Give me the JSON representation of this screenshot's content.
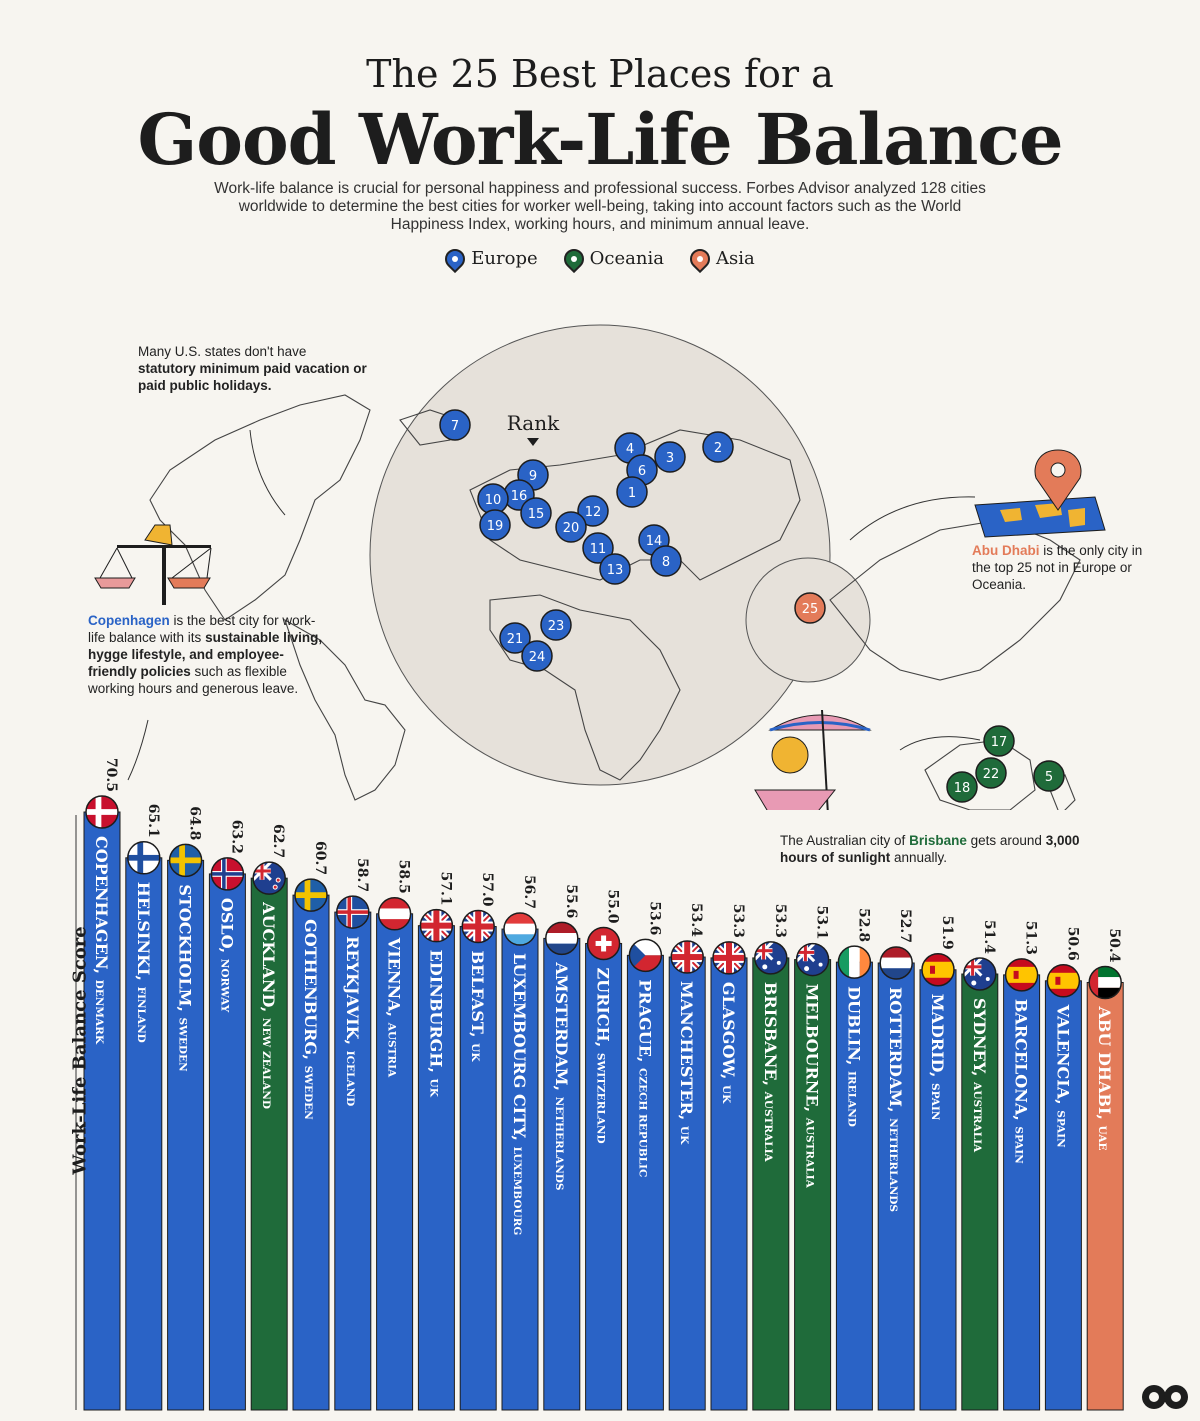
{
  "title_line1": "The 25 Best Places for a",
  "title_line2": "Good Work-Life Balance",
  "subtitle": "Work-life balance is crucial for personal happiness and professional success. Forbes Advisor analyzed 128 cities worldwide to determine the best cities for worker well-being, taking into account factors such as the World Happiness Index, working hours, and minimum annual leave.",
  "legend": [
    {
      "label": "Europe",
      "color": "#2a63c6"
    },
    {
      "label": "Oceania",
      "color": "#1f6b3a"
    },
    {
      "label": "Asia",
      "color": "#e37b59"
    }
  ],
  "notes": {
    "us": {
      "plain": "Many U.S. states don't have",
      "bold": "statutory minimum paid vacation or paid public holidays."
    },
    "copenhagen": {
      "city": "Copenhagen",
      "t1": "is the best city for work-life balance with its",
      "bold": "sustainable living, hygge lifestyle, and employee-friendly policies",
      "t2": "such as flexible working hours and generous leave."
    },
    "abudhabi": {
      "city": "Abu Dhabi",
      "text": "is the only city in the top 25 not in Europe or Oceania."
    },
    "brisbane": {
      "t1": "The Australian city of",
      "city": "Brisbane",
      "t2": "gets around",
      "bold": "3,000 hours of sunlight",
      "t3": "annually."
    }
  },
  "map": {
    "rank_label": "Rank",
    "markers": [
      {
        "rank": "7",
        "region": "Europe"
      },
      {
        "rank": "4",
        "region": "Europe"
      },
      {
        "rank": "3",
        "region": "Europe"
      },
      {
        "rank": "2",
        "region": "Europe"
      },
      {
        "rank": "6",
        "region": "Europe"
      },
      {
        "rank": "1",
        "region": "Europe"
      },
      {
        "rank": "9",
        "region": "Europe"
      },
      {
        "rank": "16",
        "region": "Europe"
      },
      {
        "rank": "10",
        "region": "Europe"
      },
      {
        "rank": "19",
        "region": "Europe"
      },
      {
        "rank": "15",
        "region": "Europe"
      },
      {
        "rank": "12",
        "region": "Europe"
      },
      {
        "rank": "20",
        "region": "Europe"
      },
      {
        "rank": "11",
        "region": "Europe"
      },
      {
        "rank": "14",
        "region": "Europe"
      },
      {
        "rank": "13",
        "region": "Europe"
      },
      {
        "rank": "8",
        "region": "Europe"
      },
      {
        "rank": "23",
        "region": "Europe"
      },
      {
        "rank": "21",
        "region": "Europe"
      },
      {
        "rank": "24",
        "region": "Europe"
      },
      {
        "rank": "25",
        "region": "Asia"
      },
      {
        "rank": "17",
        "region": "Oceania"
      },
      {
        "rank": "22",
        "region": "Oceania"
      },
      {
        "rank": "18",
        "region": "Oceania"
      },
      {
        "rank": "5",
        "region": "Oceania"
      }
    ]
  },
  "chart_data": {
    "type": "bar",
    "ylabel": "Work-Life Balance Score",
    "colors": {
      "Europe": "#2a63c6",
      "Oceania": "#1f6b3a",
      "Asia": "#e37b59"
    },
    "bars": [
      {
        "city": "COPENHAGEN,",
        "country": "DENMARK",
        "value": 70.5,
        "region": "Europe",
        "flag": "DK"
      },
      {
        "city": "HELSINKI,",
        "country": "FINLAND",
        "value": 65.1,
        "region": "Europe",
        "flag": "FI"
      },
      {
        "city": "STOCKHOLM,",
        "country": "SWEDEN",
        "value": 64.8,
        "region": "Europe",
        "flag": "SE"
      },
      {
        "city": "OSLO,",
        "country": "NORWAY",
        "value": 63.2,
        "region": "Europe",
        "flag": "NO"
      },
      {
        "city": "AUCKLAND,",
        "country": "NEW ZEALAND",
        "value": 62.7,
        "region": "Oceania",
        "flag": "NZ"
      },
      {
        "city": "GOTHENBURG,",
        "country": "SWEDEN",
        "value": 60.7,
        "region": "Europe",
        "flag": "SE"
      },
      {
        "city": "REYKJAVIK,",
        "country": "ICELAND",
        "value": 58.7,
        "region": "Europe",
        "flag": "IS"
      },
      {
        "city": "VIENNA,",
        "country": "AUSTRIA",
        "value": 58.5,
        "region": "Europe",
        "flag": "AT"
      },
      {
        "city": "EDINBURGH,",
        "country": "UK",
        "value": 57.1,
        "region": "Europe",
        "flag": "UK"
      },
      {
        "city": "BELFAST,",
        "country": "UK",
        "value": 57.0,
        "region": "Europe",
        "flag": "UK"
      },
      {
        "city": "LUXEMBOURG CITY,",
        "country": "LUXEMBOURG",
        "value": 56.7,
        "region": "Europe",
        "flag": "LU"
      },
      {
        "city": "AMSTERDAM,",
        "country": "NETHERLANDS",
        "value": 55.6,
        "region": "Europe",
        "flag": "NL"
      },
      {
        "city": "ZURICH,",
        "country": "SWITZERLAND",
        "value": 55.0,
        "region": "Europe",
        "flag": "CH"
      },
      {
        "city": "PRAGUE,",
        "country": "CZECH REPUBLIC",
        "value": 53.6,
        "region": "Europe",
        "flag": "CZ"
      },
      {
        "city": "MANCHESTER,",
        "country": "UK",
        "value": 53.4,
        "region": "Europe",
        "flag": "UK"
      },
      {
        "city": "GLASGOW,",
        "country": "UK",
        "value": 53.3,
        "region": "Europe",
        "flag": "UK"
      },
      {
        "city": "BRISBANE,",
        "country": "AUSTRALIA",
        "value": 53.3,
        "region": "Oceania",
        "flag": "AU"
      },
      {
        "city": "MELBOURNE,",
        "country": "AUSTRALIA",
        "value": 53.1,
        "region": "Oceania",
        "flag": "AU"
      },
      {
        "city": "DUBLIN,",
        "country": "IRELAND",
        "value": 52.8,
        "region": "Europe",
        "flag": "IE"
      },
      {
        "city": "ROTTERDAM,",
        "country": "NETHERLANDS",
        "value": 52.7,
        "region": "Europe",
        "flag": "NL"
      },
      {
        "city": "MADRID,",
        "country": "SPAIN",
        "value": 51.9,
        "region": "Europe",
        "flag": "ES"
      },
      {
        "city": "SYDNEY,",
        "country": "AUSTRALIA",
        "value": 51.4,
        "region": "Oceania",
        "flag": "AU"
      },
      {
        "city": "BARCELONA,",
        "country": "SPAIN",
        "value": 51.3,
        "region": "Europe",
        "flag": "ES"
      },
      {
        "city": "VALENCIA,",
        "country": "SPAIN",
        "value": 50.6,
        "region": "Europe",
        "flag": "ES"
      },
      {
        "city": "ABU DHABI,",
        "country": "UAE",
        "value": 50.4,
        "region": "Asia",
        "flag": "AE"
      }
    ]
  }
}
